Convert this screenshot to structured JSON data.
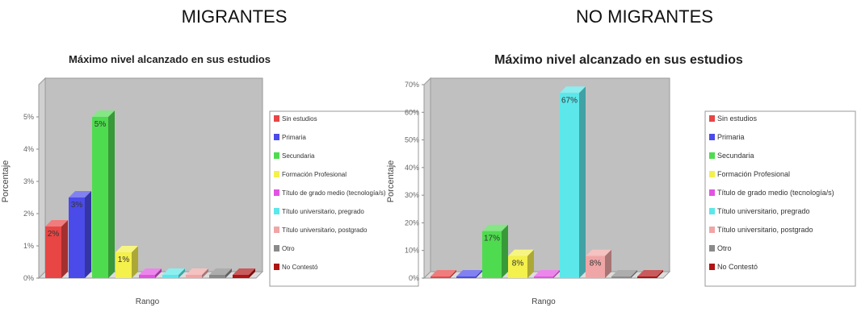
{
  "headers": {
    "left": "MIGRANTES",
    "right": "NO MIGRANTES"
  },
  "colors": {
    "Sin estudios": "#e84545",
    "Primaria": "#4b4bea",
    "Secundaria": "#4fdb4f",
    "Formación Profesional": "#f4f04c",
    "Título de grado medio (tecnología/s)": "#e353e3",
    "Título universitario, pregrado": "#5ce7ea",
    "Título universitario, postgrado": "#f0a6a6",
    "Otro": "#8a8a8a",
    "No Contestó": "#b01414"
  },
  "chart_data": [
    {
      "type": "bar",
      "title": "Máximo nivel alcanzado en sus estudios",
      "xlabel": "Rango",
      "ylabel": "Porcentaje",
      "ylim": [
        0,
        6
      ],
      "yticks": [
        "0%",
        "1%",
        "2%",
        "3%",
        "4%",
        "5%"
      ],
      "grid": false,
      "legend_position": "right",
      "categories": [
        "Sin estudios",
        "Primaria",
        "Secundaria",
        "Formación Profesional",
        "Título de grado medio (tecnología/s)",
        "Título universitario, pregrado",
        "Título universitario, postgrado",
        "Otro",
        "No Contestó"
      ],
      "values": [
        1.6,
        2.5,
        5.0,
        0.8,
        0.1,
        0.1,
        0.1,
        0.1,
        0.1
      ],
      "data_labels": [
        "2%",
        "3%",
        "5%",
        "1%",
        "",
        "",
        "",
        "",
        ""
      ]
    },
    {
      "type": "bar",
      "title": "Máximo nivel alcanzado en sus estudios",
      "xlabel": "Rango",
      "ylabel": "Porcentaje",
      "ylim": [
        0,
        70
      ],
      "yticks": [
        "0%",
        "10%",
        "20%",
        "30%",
        "40%",
        "50%",
        "60%",
        "70%"
      ],
      "grid": false,
      "legend_position": "right",
      "categories": [
        "Sin estudios",
        "Primaria",
        "Secundaria",
        "Formación Profesional",
        "Título de grado medio (tecnología/s)",
        "Título universitario, pregrado",
        "Título universitario, postgrado",
        "Otro",
        "No Contestó"
      ],
      "values": [
        0.5,
        0.5,
        17,
        8,
        0.5,
        67,
        8,
        0.5,
        0.5
      ],
      "data_labels": [
        "",
        "",
        "17%",
        "8%",
        "",
        "67%",
        "8%",
        "",
        ""
      ]
    }
  ]
}
